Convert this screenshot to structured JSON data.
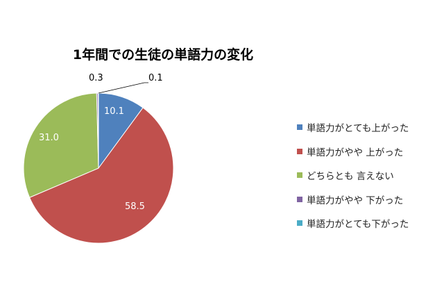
{
  "chart_data": {
    "type": "pie",
    "title": "1年間での生徒の単語力の変化",
    "categories": [
      "単語力がとても上がった",
      "単語力がやや 上がった",
      "どちらとも 言えない",
      "単語力がやや 下がった",
      "単語力がとても下がった"
    ],
    "values": [
      10.1,
      58.5,
      31.0,
      0.3,
      0.1
    ],
    "data_labels": [
      "10.1",
      "58.5",
      "31.0",
      "0.3",
      "0.1"
    ],
    "colors": [
      "#4f81bd",
      "#c0504d",
      "#9bbb59",
      "#8064a2",
      "#4bacc6"
    ],
    "legend_position": "right",
    "start_angle": "12 o'clock, clockwise"
  },
  "title": "1年間での生徒の単語力の変化",
  "legend": [
    {
      "label": "単語力がとても上がった",
      "color": "#4f81bd"
    },
    {
      "label": "単語力がやや 上がった",
      "color": "#c0504d"
    },
    {
      "label": "どちらとも 言えない",
      "color": "#9bbb59"
    },
    {
      "label": "単語力がやや 下がった",
      "color": "#8064a2"
    },
    {
      "label": "単語力がとても下がった",
      "color": "#4bacc6"
    }
  ],
  "labels": {
    "a": "10.1",
    "b": "58.5",
    "c": "31.0",
    "d": "0.3",
    "e": "0.1"
  }
}
